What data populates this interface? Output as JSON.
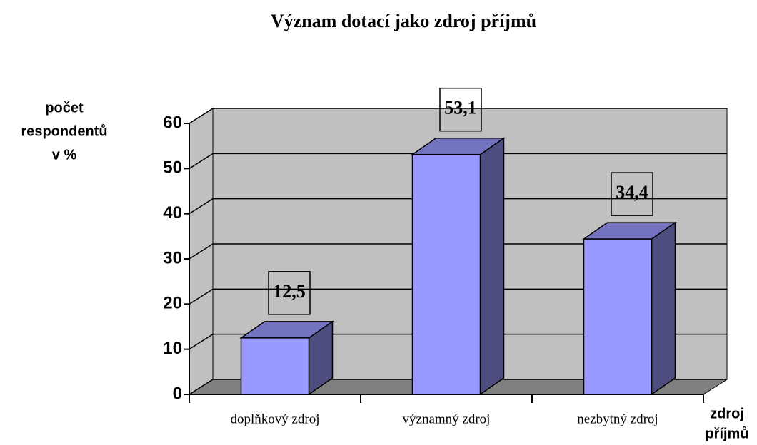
{
  "chart_data": {
    "type": "bar3d",
    "title": "Význam dotací jako zdroj příjmů",
    "y_label": [
      "počet",
      "respondentů",
      "v %"
    ],
    "x_label": [
      "zdroj",
      "příjmů"
    ],
    "categories": [
      "doplňkový zdroj",
      "významný zdroj",
      "nezbytný zdroj"
    ],
    "values": [
      12.5,
      53.1,
      34.4
    ],
    "value_labels": [
      "12,5",
      "53,1",
      "34,4"
    ],
    "color": "#9999ff",
    "ylim": [
      0,
      60
    ],
    "yticks": [
      0,
      10,
      20,
      30,
      40,
      50,
      60
    ],
    "grid": true
  }
}
